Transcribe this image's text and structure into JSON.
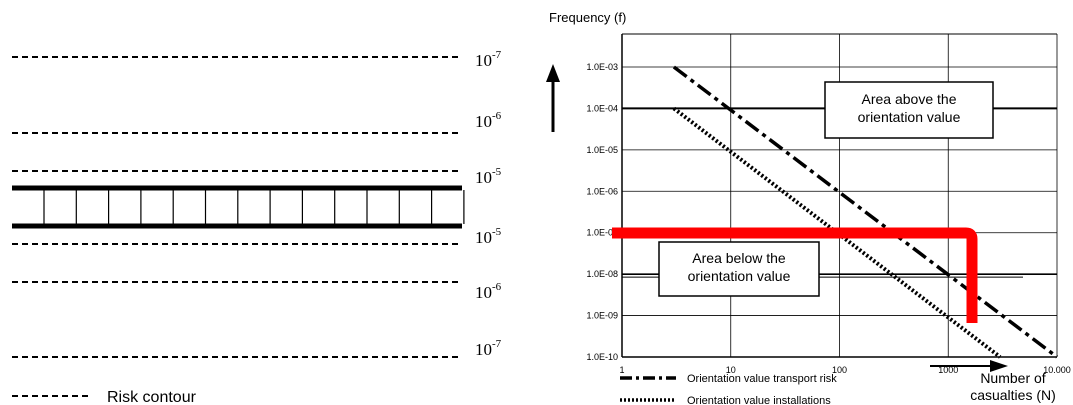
{
  "left_panel": {
    "contour_labels": [
      {
        "base": "10",
        "exp": "-7"
      },
      {
        "base": "10",
        "exp": "-6"
      },
      {
        "base": "10",
        "exp": "-5"
      },
      {
        "base": "10",
        "exp": "-5"
      },
      {
        "base": "10",
        "exp": "-6"
      },
      {
        "base": "10",
        "exp": "-7"
      }
    ],
    "legend_label": "Risk contour"
  },
  "chart_data": {
    "type": "line",
    "ylabel": "Frequency (f)",
    "xlabel_lines": [
      "Number of",
      "casualties (N)"
    ],
    "x_scale": "log",
    "y_scale": "log",
    "xlim": [
      1,
      10000
    ],
    "ylim": [
      1e-10,
      0.001
    ],
    "x_tick_labels": [
      "1",
      "10",
      "100",
      "1000",
      "10.000"
    ],
    "y_tick_labels": [
      "1.0E-03",
      "1.0E-04",
      "1.0E-05",
      "1.0E-06",
      "1.0E-07",
      "1.0E-08",
      "1.0E-09",
      "1.0E-10"
    ],
    "grid": true,
    "series": [
      {
        "name": "Orientation value transport risk",
        "style": "dash-dot",
        "x": [
          3,
          10000
        ],
        "y": [
          0.001,
          1e-10
        ]
      },
      {
        "name": "Orientation value installations",
        "style": "dotted",
        "x": [
          3,
          3000
        ],
        "y": [
          0.0001,
          1e-10
        ]
      }
    ],
    "annotations": {
      "above_lines": [
        "Area above the",
        "orientation value"
      ],
      "below_lines": [
        "Area below the",
        "orientation value"
      ]
    },
    "orientation_levels": [
      0.0001,
      1e-08
    ],
    "highlight_color": "#ff0000"
  }
}
